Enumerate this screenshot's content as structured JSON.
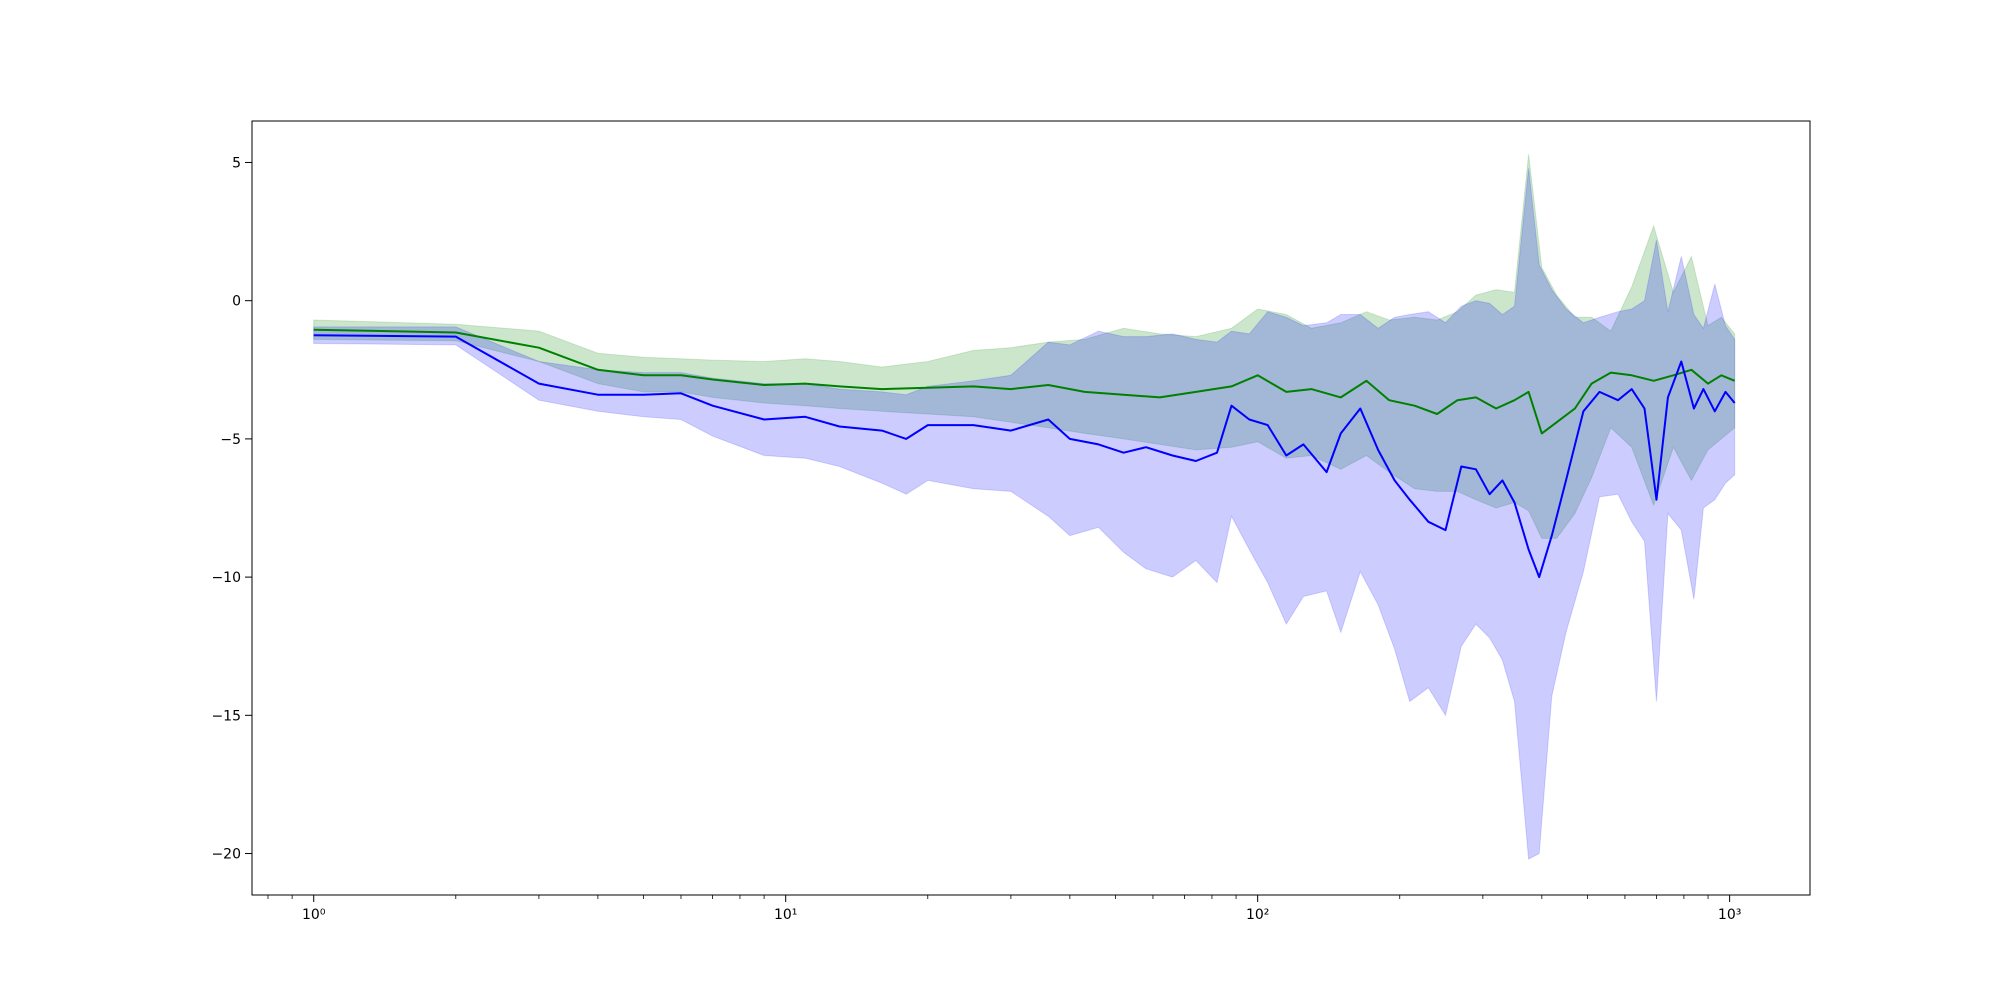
{
  "chart_data": {
    "type": "line",
    "title": "",
    "xlabel": "",
    "ylabel": "",
    "xscale": "log",
    "xlim": [
      0.74,
      1480
    ],
    "ylim": [
      -21.5,
      6.5
    ],
    "grid": false,
    "legend": "none",
    "x_ticks": [
      {
        "value": 1,
        "label": "10⁰"
      },
      {
        "value": 10,
        "label": "10¹"
      },
      {
        "value": 100,
        "label": "10²"
      },
      {
        "value": 1000,
        "label": "10³"
      }
    ],
    "y_ticks": [
      {
        "value": 5,
        "label": "5"
      },
      {
        "value": 0,
        "label": "0"
      },
      {
        "value": -5,
        "label": "−5"
      },
      {
        "value": -10,
        "label": "−10"
      },
      {
        "value": -15,
        "label": "−15"
      },
      {
        "value": -20,
        "label": "−20"
      }
    ],
    "series": [
      {
        "color": "#008000",
        "band_color": "#008000",
        "band_opacity": 0.2,
        "points": [
          [
            1,
            -1.05,
            -0.7,
            -1.4
          ],
          [
            2,
            -1.15,
            -0.85,
            -1.45
          ],
          [
            3,
            -1.7,
            -1.1,
            -2.2
          ],
          [
            4,
            -2.5,
            -1.9,
            -3.0
          ],
          [
            5,
            -2.7,
            -2.05,
            -3.3
          ],
          [
            6,
            -2.7,
            -2.1,
            -3.3
          ],
          [
            7,
            -2.85,
            -2.15,
            -3.5
          ],
          [
            9,
            -3.05,
            -2.2,
            -3.7
          ],
          [
            11,
            -3.0,
            -2.1,
            -3.8
          ],
          [
            13,
            -3.1,
            -2.2,
            -3.9
          ],
          [
            16,
            -3.2,
            -2.4,
            -4.0
          ],
          [
            20,
            -3.15,
            -2.2,
            -4.1
          ],
          [
            25,
            -3.1,
            -1.8,
            -4.2
          ],
          [
            30,
            -3.2,
            -1.7,
            -4.4
          ],
          [
            36,
            -3.05,
            -1.5,
            -4.6
          ],
          [
            43,
            -3.3,
            -1.4,
            -4.8
          ],
          [
            52,
            -3.4,
            -1.0,
            -5.0
          ],
          [
            62,
            -3.5,
            -1.2,
            -5.2
          ],
          [
            74,
            -3.3,
            -1.3,
            -5.4
          ],
          [
            88,
            -3.1,
            -1.0,
            -5.3
          ],
          [
            100,
            -2.7,
            -0.3,
            -5.1
          ],
          [
            115,
            -3.3,
            -0.5,
            -5.7
          ],
          [
            130,
            -3.2,
            -1.0,
            -5.6
          ],
          [
            150,
            -3.5,
            -0.8,
            -6.1
          ],
          [
            170,
            -2.9,
            -0.4,
            -5.6
          ],
          [
            190,
            -3.6,
            -0.7,
            -6.2
          ],
          [
            215,
            -3.8,
            -0.6,
            -6.8
          ],
          [
            240,
            -4.1,
            -0.7,
            -6.9
          ],
          [
            265,
            -3.6,
            -0.4,
            -6.9
          ],
          [
            290,
            -3.5,
            0.2,
            -7.2
          ],
          [
            320,
            -3.9,
            0.4,
            -7.5
          ],
          [
            350,
            -3.6,
            0.3,
            -7.3
          ],
          [
            375,
            -3.3,
            5.3,
            -7.6
          ],
          [
            400,
            -4.8,
            1.2,
            -8.6
          ],
          [
            430,
            -4.4,
            0.2,
            -8.6
          ],
          [
            470,
            -3.9,
            -0.6,
            -7.7
          ],
          [
            510,
            -3.0,
            -0.6,
            -6.4
          ],
          [
            560,
            -2.6,
            -1.1,
            -4.6
          ],
          [
            620,
            -2.7,
            0.5,
            -5.3
          ],
          [
            690,
            -2.9,
            2.7,
            -7.4
          ],
          [
            760,
            -2.7,
            0.3,
            -5.3
          ],
          [
            830,
            -2.5,
            1.6,
            -6.5
          ],
          [
            900,
            -3.0,
            -0.9,
            -5.4
          ],
          [
            960,
            -2.7,
            -0.6,
            -5.0
          ],
          [
            1025,
            -2.9,
            -1.2,
            -4.6
          ]
        ]
      },
      {
        "color": "#0000ff",
        "band_color": "#0000ff",
        "band_opacity": 0.2,
        "points": [
          [
            1,
            -1.25,
            -0.95,
            -1.55
          ],
          [
            2,
            -1.3,
            -0.95,
            -1.6
          ],
          [
            3,
            -3.0,
            -2.2,
            -3.6
          ],
          [
            4,
            -3.4,
            -2.5,
            -4.0
          ],
          [
            5,
            -3.4,
            -2.6,
            -4.2
          ],
          [
            6,
            -3.35,
            -2.6,
            -4.3
          ],
          [
            7,
            -3.8,
            -2.8,
            -4.9
          ],
          [
            9,
            -4.3,
            -3.0,
            -5.6
          ],
          [
            11,
            -4.2,
            -3.0,
            -5.7
          ],
          [
            13,
            -4.55,
            -3.2,
            -6.0
          ],
          [
            16,
            -4.7,
            -3.3,
            -6.6
          ],
          [
            18,
            -5.0,
            -3.4,
            -7.0
          ],
          [
            20,
            -4.5,
            -3.1,
            -6.5
          ],
          [
            25,
            -4.5,
            -2.9,
            -6.8
          ],
          [
            30,
            -4.7,
            -2.7,
            -6.9
          ],
          [
            36,
            -4.3,
            -1.5,
            -7.8
          ],
          [
            40,
            -5.0,
            -1.6,
            -8.5
          ],
          [
            46,
            -5.2,
            -1.1,
            -8.2
          ],
          [
            52,
            -5.5,
            -1.3,
            -9.1
          ],
          [
            58,
            -5.3,
            -1.3,
            -9.7
          ],
          [
            66,
            -5.6,
            -1.2,
            -10.0
          ],
          [
            74,
            -5.8,
            -1.4,
            -9.4
          ],
          [
            82,
            -5.5,
            -1.5,
            -10.2
          ],
          [
            88,
            -3.8,
            -1.1,
            -7.8
          ],
          [
            96,
            -4.3,
            -1.2,
            -9.0
          ],
          [
            105,
            -4.5,
            -0.4,
            -10.2
          ],
          [
            115,
            -5.6,
            -0.6,
            -11.7
          ],
          [
            125,
            -5.2,
            -0.9,
            -10.7
          ],
          [
            140,
            -6.2,
            -0.8,
            -10.5
          ],
          [
            150,
            -4.8,
            -0.5,
            -12.0
          ],
          [
            165,
            -3.9,
            -0.5,
            -9.8
          ],
          [
            180,
            -5.4,
            -1.0,
            -11.0
          ],
          [
            195,
            -6.5,
            -0.6,
            -12.6
          ],
          [
            210,
            -7.2,
            -0.5,
            -14.5
          ],
          [
            230,
            -8.0,
            -0.4,
            -14.0
          ],
          [
            250,
            -8.3,
            -0.8,
            -15.0
          ],
          [
            270,
            -6.0,
            -0.2,
            -12.5
          ],
          [
            290,
            -6.1,
            0.0,
            -11.7
          ],
          [
            310,
            -7.0,
            -0.1,
            -12.2
          ],
          [
            330,
            -6.5,
            -0.5,
            -13.0
          ],
          [
            350,
            -7.3,
            -0.2,
            -14.5
          ],
          [
            375,
            -9.0,
            4.8,
            -20.2
          ],
          [
            395,
            -10.0,
            1.3,
            -20.0
          ],
          [
            420,
            -8.5,
            0.4,
            -14.3
          ],
          [
            450,
            -6.5,
            -0.3,
            -12.0
          ],
          [
            490,
            -4.0,
            -0.8,
            -9.8
          ],
          [
            530,
            -3.3,
            -0.6,
            -7.1
          ],
          [
            580,
            -3.6,
            -0.4,
            -7.0
          ],
          [
            620,
            -3.2,
            -0.3,
            -8.0
          ],
          [
            660,
            -3.9,
            0.0,
            -8.7
          ],
          [
            700,
            -7.2,
            2.2,
            -14.5
          ],
          [
            740,
            -3.5,
            -0.4,
            -7.7
          ],
          [
            790,
            -2.2,
            1.6,
            -8.3
          ],
          [
            840,
            -3.9,
            -0.5,
            -10.8
          ],
          [
            880,
            -3.2,
            -1.0,
            -7.5
          ],
          [
            930,
            -4.0,
            0.6,
            -7.2
          ],
          [
            980,
            -3.3,
            -0.9,
            -6.6
          ],
          [
            1025,
            -3.7,
            -1.4,
            -6.3
          ]
        ]
      }
    ]
  }
}
